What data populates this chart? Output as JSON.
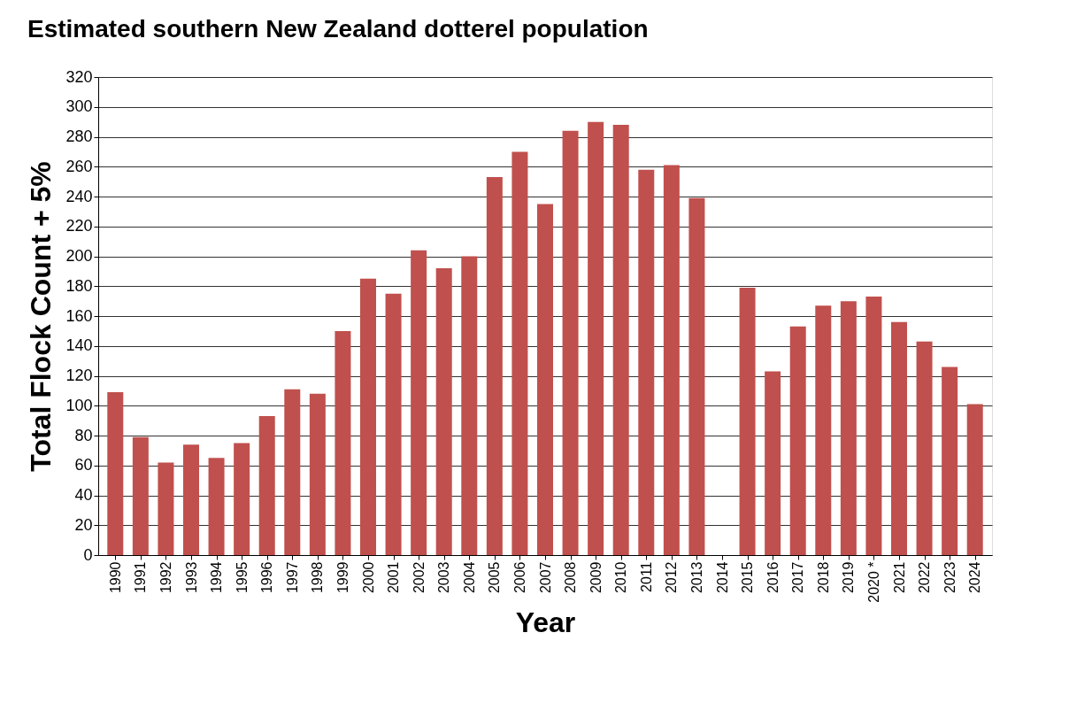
{
  "chart_data": {
    "type": "bar",
    "title": "Estimated southern New Zealand dotterel population",
    "xlabel": "Year",
    "ylabel": "Total Flock Count + 5%",
    "categories": [
      "1990",
      "1991",
      "1992",
      "1993",
      "1994",
      "1995",
      "1996",
      "1997",
      "1998",
      "1999",
      "2000",
      "2001",
      "2002",
      "2003",
      "2004",
      "2005",
      "2006",
      "2007",
      "2008",
      "2009",
      "2010",
      "2011",
      "2012",
      "2013",
      "2014",
      "2015",
      "2016",
      "2017",
      "2018",
      "2019",
      "2020 *",
      "2021",
      "2022",
      "2023",
      "2024"
    ],
    "values": [
      109,
      79,
      62,
      74,
      65,
      75,
      93,
      111,
      108,
      150,
      185,
      175,
      204,
      192,
      200,
      253,
      270,
      235,
      284,
      290,
      288,
      258,
      261,
      239,
      null,
      179,
      123,
      153,
      167,
      170,
      173,
      156,
      143,
      126,
      101
    ],
    "color": "#c0504d",
    "ylim": [
      0,
      320
    ],
    "yticks": [
      0,
      20,
      40,
      60,
      80,
      100,
      120,
      140,
      160,
      180,
      200,
      220,
      240,
      260,
      280,
      300,
      320
    ],
    "grid": "y"
  }
}
